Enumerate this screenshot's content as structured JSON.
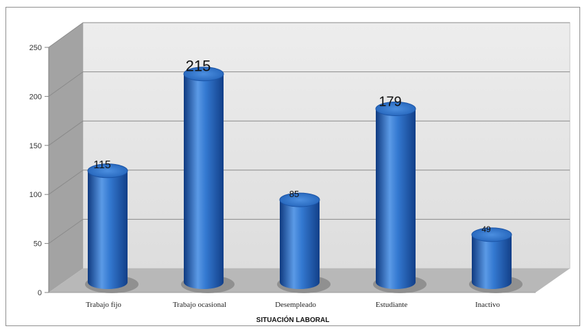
{
  "chart_data": {
    "type": "bar",
    "style": "3d-cylinder",
    "categories": [
      "Trabajo fijo",
      "Trabajo ocasional",
      "Desempleado",
      "Estudiante",
      "Inactivo"
    ],
    "values": [
      115,
      215,
      85,
      179,
      49
    ],
    "data_labels": [
      "115",
      "215",
      "85",
      "179",
      "49"
    ],
    "y_ticks": [
      "0",
      "50",
      "100",
      "150",
      "200",
      "250"
    ],
    "xlabel": "SITUACIÓN LABORAL",
    "ylabel": "",
    "ylim": [
      0,
      250
    ],
    "grid": true,
    "legend": "none",
    "colors": {
      "bar": "#2a6fc9",
      "bar_dark": "#12408a",
      "bar_light": "#6ea6ec",
      "wall": "#e6e6e6",
      "floor": "#b9b9b9",
      "side_wall": "#9f9f9f"
    }
  }
}
